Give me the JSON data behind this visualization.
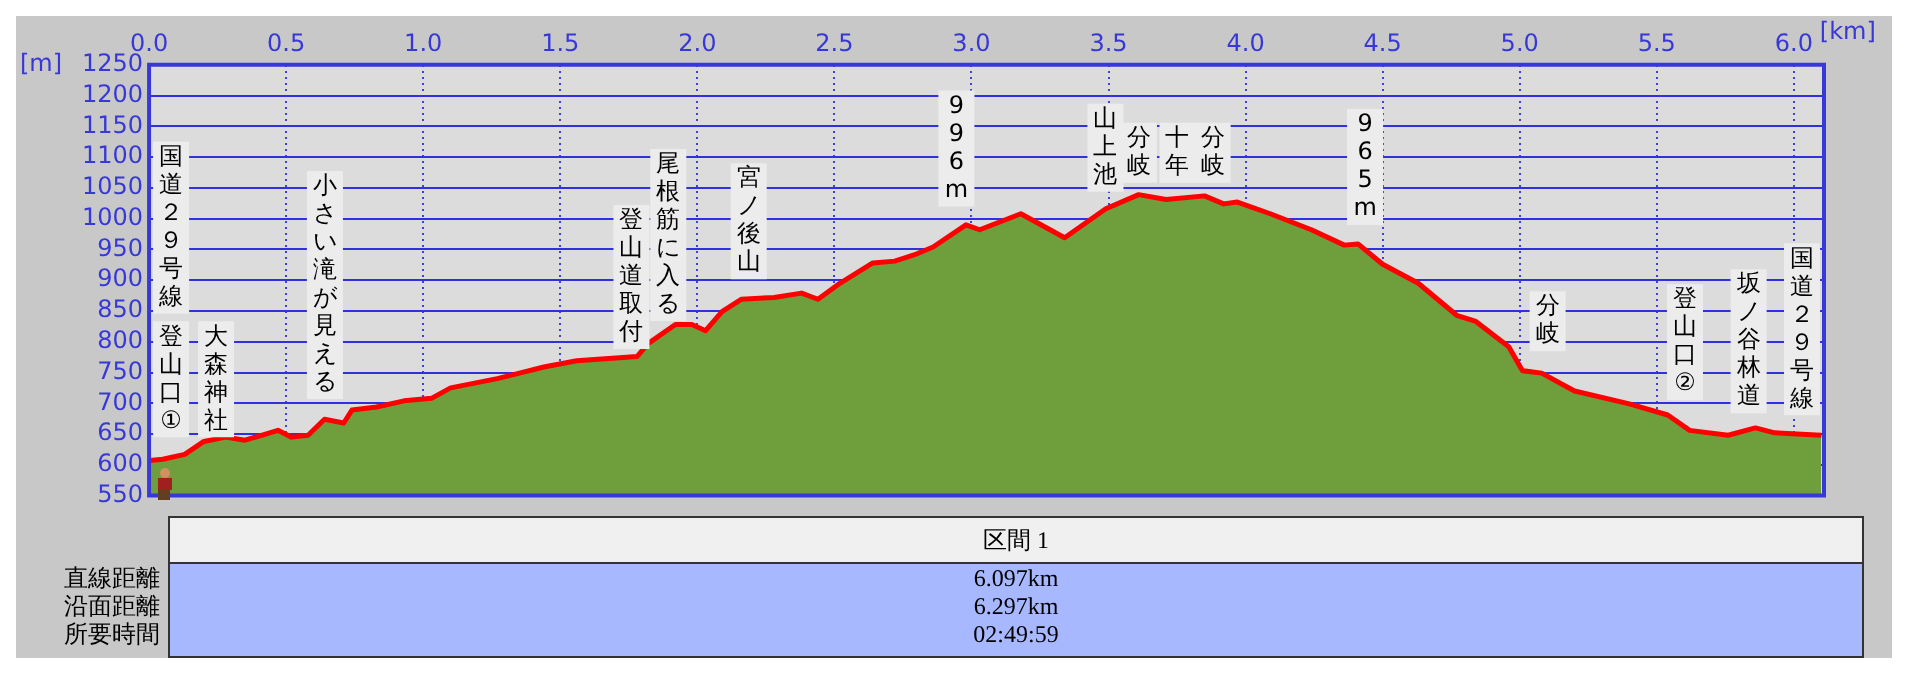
{
  "chart_data": {
    "type": "area",
    "xlabel": "[km]",
    "ylabel": "[m]",
    "xlim": [
      0,
      6.11
    ],
    "ylim": [
      550,
      1250
    ],
    "xticks": [
      {
        "value": 0,
        "label": "0.0"
      },
      {
        "value": 0.5,
        "label": "0.5"
      },
      {
        "value": 1,
        "label": "1.0"
      },
      {
        "value": 1.5,
        "label": "1.5"
      },
      {
        "value": 2,
        "label": "2.0"
      },
      {
        "value": 2.5,
        "label": "2.5"
      },
      {
        "value": 3,
        "label": "3.0"
      },
      {
        "value": 3.5,
        "label": "3.5"
      },
      {
        "value": 4,
        "label": "4.0"
      },
      {
        "value": 4.5,
        "label": "4.5"
      },
      {
        "value": 5,
        "label": "5.0"
      },
      {
        "value": 5.5,
        "label": "5.5"
      },
      {
        "value": 6,
        "label": "6.0"
      }
    ],
    "yticks": [
      550,
      600,
      650,
      700,
      750,
      800,
      850,
      900,
      950,
      1000,
      1050,
      1100,
      1150,
      1200,
      1250
    ],
    "grid": true,
    "legend": false,
    "marker": "none",
    "line_style": "solid",
    "series": [
      {
        "color": "#6f9e3c",
        "x": [
          0,
          0.05,
          0.13,
          0.2,
          0.28,
          0.35,
          0.47,
          0.52,
          0.58,
          0.64,
          0.71,
          0.74,
          0.83,
          0.93,
          1.03,
          1.1,
          1.27,
          1.44,
          1.56,
          1.78,
          1.82,
          1.92,
          1.98,
          2.03,
          2.09,
          2.16,
          2.28,
          2.38,
          2.44,
          2.52,
          2.64,
          2.72,
          2.79,
          2.86,
          2.98,
          3.03,
          3.18,
          3.34,
          3.49,
          3.61,
          3.71,
          3.85,
          3.92,
          3.97,
          4.09,
          4.24,
          4.36,
          4.41,
          4.5,
          4.63,
          4.77,
          4.84,
          4.96,
          5.01,
          5.08,
          5.2,
          5.4,
          5.54,
          5.62,
          5.76,
          5.86,
          5.93,
          6.1
        ],
        "values": [
          607,
          609,
          617,
          638,
          645,
          640,
          656,
          645,
          648,
          674,
          668,
          689,
          694,
          704,
          708,
          725,
          740,
          759,
          769,
          776,
          797,
          828,
          828,
          818,
          849,
          869,
          872,
          879,
          869,
          895,
          928,
          931,
          941,
          954,
          990,
          982,
          1008,
          969,
          1016,
          1039,
          1031,
          1037,
          1024,
          1027,
          1008,
          982,
          957,
          959,
          926,
          895,
          843,
          833,
          792,
          753,
          749,
          720,
          699,
          681,
          656,
          648,
          660,
          652,
          648
        ]
      },
      {
        "type": "line",
        "color": "#ff0000",
        "x": [
          0,
          0.05,
          0.13,
          0.2,
          0.28,
          0.35,
          0.47,
          0.52,
          0.58,
          0.64,
          0.71,
          0.74,
          0.83,
          0.93,
          1.03,
          1.1,
          1.27,
          1.44,
          1.56,
          1.78,
          1.82,
          1.92,
          1.98,
          2.03,
          2.09,
          2.16,
          2.28,
          2.38,
          2.44,
          2.52,
          2.64,
          2.72,
          2.79,
          2.86,
          2.98,
          3.03,
          3.18,
          3.34,
          3.49,
          3.61,
          3.71,
          3.85,
          3.92,
          3.97,
          4.09,
          4.24,
          4.36,
          4.41,
          4.5,
          4.63,
          4.77,
          4.84,
          4.96,
          5.01,
          5.08,
          5.2,
          5.4,
          5.54,
          5.62,
          5.76,
          5.86,
          5.93,
          6.1
        ],
        "values": [
          607,
          609,
          617,
          638,
          645,
          640,
          656,
          645,
          648,
          674,
          668,
          689,
          694,
          704,
          708,
          725,
          740,
          759,
          769,
          776,
          797,
          828,
          828,
          818,
          849,
          869,
          872,
          879,
          869,
          895,
          928,
          931,
          941,
          954,
          990,
          982,
          1008,
          969,
          1016,
          1039,
          1031,
          1037,
          1024,
          1027,
          1008,
          982,
          957,
          959,
          926,
          895,
          843,
          833,
          792,
          753,
          749,
          720,
          699,
          681,
          656,
          648,
          660,
          652,
          648
        ]
      }
    ],
    "annotations": [
      "国道２９号線",
      "登山口①",
      "大森神社",
      "小さい滝が見える",
      "登山道取付",
      "尾根筋に入る",
      "宮ノ後山",
      "996m",
      "山上池",
      "分岐",
      "十年",
      "分岐",
      "965m",
      "分岐",
      "登山口②",
      "坂ノ谷林道",
      "国道２９号線",
      "区間 1",
      "直線距離",
      "6.097km",
      "沿面距離",
      "6.297km",
      "所要時間",
      "02:49:59"
    ]
  }
}
